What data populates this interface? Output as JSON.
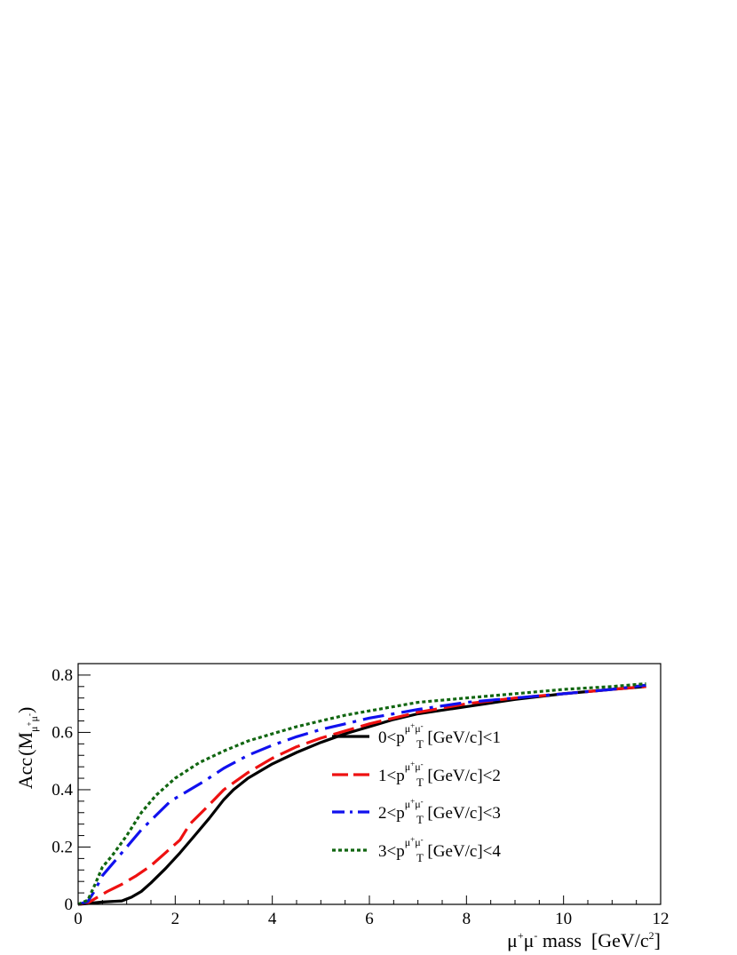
{
  "chart_data": {
    "type": "line",
    "title": "",
    "xlabel": {
      "base": "μ",
      "sup1": "+",
      "mid": "μ",
      "sup2": "-",
      "rest": " mass  [GeV/c",
      "sup3": "2",
      "close": "]"
    },
    "ylabel": {
      "prefix": "Acc",
      "var": "M",
      "sub": "μ",
      "subsup1": "+",
      "sub2": "μ",
      "subsup2": "-"
    },
    "xlim": [
      0,
      12
    ],
    "ylim": [
      0,
      0.84
    ],
    "x_ticks": [
      "0",
      "2",
      "4",
      "6",
      "8",
      "10",
      "12"
    ],
    "y_ticks": [
      "0",
      "0.2",
      "0.4",
      "0.6",
      "0.8"
    ],
    "grid": false,
    "legend_position": "center-right",
    "series": [
      {
        "name": {
          "pre": "0<p",
          "sup": "μ",
          "supsign1": "+",
          "sup2": "μ",
          "supsign2": "-",
          "sub": "T",
          "post": " [GeV/c]<1"
        },
        "color": "#000000",
        "dash": "solid",
        "x": [
          0,
          0.2,
          0.5,
          0.9,
          1.1,
          1.3,
          1.5,
          1.8,
          2.1,
          2.4,
          2.7,
          3.0,
          3.2,
          3.5,
          4.0,
          4.5,
          5.0,
          5.5,
          6.0,
          6.5,
          7.0,
          8.0,
          9.0,
          10.0,
          11.0,
          11.7
        ],
        "y": [
          0,
          0.003,
          0.008,
          0.012,
          0.025,
          0.045,
          0.075,
          0.125,
          0.18,
          0.24,
          0.3,
          0.365,
          0.4,
          0.44,
          0.49,
          0.53,
          0.565,
          0.595,
          0.62,
          0.645,
          0.665,
          0.69,
          0.715,
          0.735,
          0.75,
          0.76
        ]
      },
      {
        "name": {
          "pre": "1<p",
          "sup": "μ",
          "supsign1": "+",
          "sup2": "μ",
          "supsign2": "-",
          "sub": "T",
          "post": " [GeV/c]<2"
        },
        "color": "#ee1111",
        "dash": "long-dash",
        "x": [
          0,
          0.2,
          0.4,
          0.6,
          0.9,
          1.2,
          1.5,
          1.8,
          2.1,
          2.3,
          2.6,
          3.0,
          3.5,
          4.0,
          4.5,
          5.0,
          5.5,
          6.0,
          6.5,
          7.0,
          8.0,
          9.0,
          10.0,
          11.0,
          11.7
        ],
        "y": [
          0,
          0.005,
          0.025,
          0.045,
          0.07,
          0.1,
          0.135,
          0.18,
          0.225,
          0.28,
          0.33,
          0.4,
          0.46,
          0.51,
          0.55,
          0.58,
          0.605,
          0.63,
          0.65,
          0.67,
          0.7,
          0.72,
          0.735,
          0.75,
          0.76
        ]
      },
      {
        "name": {
          "pre": "2<p",
          "sup": "μ",
          "supsign1": "+",
          "sup2": "μ",
          "supsign2": "-",
          "sub": "T",
          "post": " [GeV/c]<3"
        },
        "color": "#1111ee",
        "dash": "dash-dot",
        "x": [
          0,
          0.2,
          0.35,
          0.5,
          0.7,
          1.0,
          1.3,
          1.6,
          1.9,
          2.2,
          2.6,
          3.0,
          3.5,
          4.0,
          4.5,
          5.0,
          5.5,
          6.0,
          6.5,
          7.0,
          8.0,
          9.0,
          10.0,
          11.0,
          11.7
        ],
        "y": [
          0,
          0.01,
          0.05,
          0.1,
          0.14,
          0.2,
          0.26,
          0.31,
          0.36,
          0.39,
          0.43,
          0.475,
          0.52,
          0.555,
          0.585,
          0.61,
          0.63,
          0.65,
          0.665,
          0.68,
          0.705,
          0.72,
          0.735,
          0.75,
          0.765
        ]
      },
      {
        "name": {
          "pre": "3<p",
          "sup": "μ",
          "supsign1": "+",
          "sup2": "μ",
          "supsign2": "-",
          "sub": "T",
          "post": " [GeV/c]<4"
        },
        "color": "#116611",
        "dash": "dotted",
        "x": [
          0,
          0.2,
          0.35,
          0.5,
          0.7,
          1.0,
          1.3,
          1.6,
          2.0,
          2.5,
          3.0,
          3.5,
          4.0,
          4.5,
          5.0,
          5.5,
          6.0,
          6.5,
          7.0,
          8.0,
          9.0,
          10.0,
          11.0,
          11.7
        ],
        "y": [
          0,
          0.015,
          0.07,
          0.13,
          0.17,
          0.24,
          0.32,
          0.38,
          0.44,
          0.495,
          0.535,
          0.57,
          0.595,
          0.62,
          0.64,
          0.66,
          0.675,
          0.69,
          0.705,
          0.72,
          0.735,
          0.75,
          0.76,
          0.77
        ]
      }
    ]
  }
}
